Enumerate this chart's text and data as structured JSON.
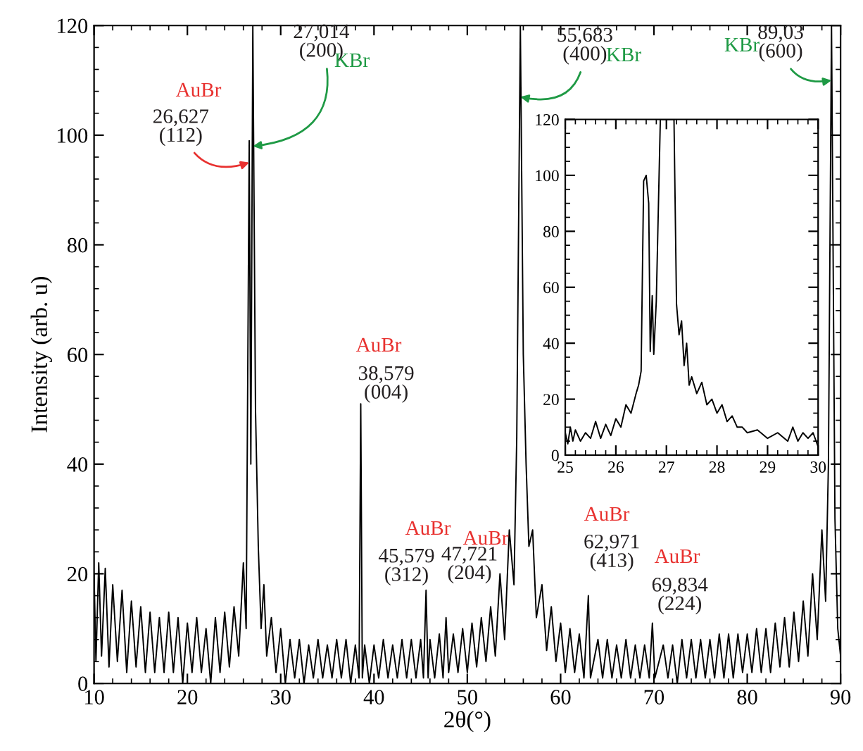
{
  "chart_data": [
    {
      "type": "line",
      "xlabel": "2θ(°)",
      "ylabel": "Intensity (arb. u)",
      "xlim": [
        10,
        90
      ],
      "ylim": [
        0,
        120
      ],
      "xticks": [
        10,
        20,
        30,
        40,
        50,
        60,
        70,
        80,
        90
      ],
      "yticks": [
        0,
        20,
        40,
        60,
        80,
        100,
        120
      ],
      "grid": false,
      "legend": false,
      "series": [
        {
          "color": "#000000",
          "x": [
            10,
            10.2,
            10.5,
            10.8,
            11.2,
            11.6,
            12,
            12.5,
            13,
            13.5,
            14,
            14.5,
            15,
            15.5,
            16,
            16.5,
            17,
            17.5,
            18,
            18.5,
            19,
            19.5,
            20,
            20.5,
            21,
            21.5,
            22,
            22.5,
            23,
            23.5,
            24,
            24.5,
            25,
            25.5,
            26,
            26.3,
            26.627,
            26.8,
            27.014,
            27.3,
            27.6,
            27.9,
            28.2,
            28.5,
            29,
            29.5,
            30,
            30.5,
            31,
            31.5,
            32,
            32.5,
            33,
            33.5,
            34,
            34.5,
            35,
            35.5,
            36,
            36.5,
            37,
            37.5,
            38,
            38.4,
            38.579,
            38.75,
            39,
            39.5,
            40,
            40.5,
            41,
            41.5,
            42,
            42.5,
            43,
            43.5,
            44,
            44.5,
            45,
            45.3,
            45.579,
            45.8,
            46,
            46.5,
            47,
            47.4,
            47.721,
            48,
            48.5,
            49,
            49.5,
            50,
            50.5,
            51,
            51.5,
            52,
            52.5,
            53,
            53.5,
            54,
            54.5,
            55,
            55.3,
            55.683,
            56,
            56.3,
            56.6,
            57,
            57.4,
            58,
            58.5,
            59,
            59.5,
            60,
            60.5,
            61,
            61.5,
            62,
            62.5,
            62.971,
            63.2,
            64,
            64.5,
            65,
            65.5,
            66,
            66.5,
            67,
            67.5,
            68,
            68.5,
            69,
            69.5,
            69.834,
            70.1,
            71,
            71.5,
            72,
            72.5,
            73,
            73.5,
            74,
            74.5,
            75,
            75.5,
            76,
            76.5,
            77,
            77.5,
            78,
            78.5,
            79,
            79.5,
            80,
            80.5,
            81,
            81.5,
            82,
            82.5,
            83,
            83.5,
            84,
            84.5,
            85,
            85.5,
            86,
            86.5,
            87,
            87.5,
            88,
            88.4,
            88.7,
            89.03,
            89.4,
            89.7,
            90
          ],
          "values": [
            20,
            4,
            22,
            5,
            21,
            3,
            18,
            4,
            17,
            2,
            15,
            3,
            14,
            2,
            13,
            2,
            12,
            2,
            13,
            2,
            12,
            0,
            11,
            2,
            12,
            2,
            10,
            0,
            12,
            2,
            13,
            3,
            14,
            5,
            22,
            10,
            99,
            40,
            120,
            50,
            25,
            10,
            18,
            5,
            12,
            2,
            10,
            0,
            8,
            1,
            8,
            0,
            7,
            1,
            8,
            1,
            7,
            1,
            8,
            1,
            8,
            0,
            7,
            1,
            51,
            1,
            7,
            0,
            7,
            1,
            8,
            1,
            7,
            1,
            8,
            1,
            8,
            1,
            8,
            1,
            17,
            1,
            8,
            1,
            9,
            1,
            12,
            2,
            9,
            2,
            10,
            2,
            11,
            3,
            12,
            4,
            14,
            5,
            20,
            8,
            28,
            18,
            45,
            120,
            60,
            40,
            25,
            28,
            12,
            18,
            6,
            14,
            4,
            11,
            2,
            10,
            2,
            9,
            1,
            16,
            1,
            8,
            1,
            8,
            1,
            7,
            1,
            8,
            1,
            7,
            1,
            7,
            1,
            11,
            1,
            7,
            1,
            7,
            0,
            8,
            1,
            8,
            1,
            8,
            1,
            8,
            1,
            9,
            1,
            9,
            1,
            9,
            2,
            9,
            2,
            10,
            2,
            10,
            2,
            11,
            3,
            12,
            3,
            13,
            4,
            15,
            5,
            20,
            8,
            28,
            15,
            40,
            120,
            30,
            10,
            5
          ]
        }
      ],
      "annotations": [
        {
          "text": "26,627\n(112)",
          "x": 26.627,
          "y": 95
        },
        {
          "text": "27,014\n(200)",
          "x": 27.014,
          "y": 98
        },
        {
          "text": "38,579\n(004)",
          "x": 38.579,
          "y": 51
        },
        {
          "text": "45,579\n(312)",
          "x": 45.579,
          "y": 17
        },
        {
          "text": "47,721\n(204)",
          "x": 47.721,
          "y": 12
        },
        {
          "text": "62,971\n(413)",
          "x": 62.971,
          "y": 16
        },
        {
          "text": "69,834\n(224)",
          "x": 69.834,
          "y": 11
        },
        {
          "text": "55,683\n(400)",
          "x": 55.683,
          "y": 107
        },
        {
          "text": "89,03\n(600)",
          "x": 89.03,
          "y": 110
        },
        "AuBr",
        "KBr",
        "AuBr",
        "AuBr",
        "AuBr",
        "AuBr",
        "AuBr",
        "KBr",
        "KBr"
      ]
    },
    {
      "type": "line",
      "xlim": [
        25,
        30
      ],
      "ylim": [
        0,
        120
      ],
      "xticks": [
        25,
        26,
        27,
        28,
        29,
        30
      ],
      "yticks": [
        0,
        20,
        40,
        60,
        80,
        100,
        120
      ],
      "grid": false,
      "legend": false,
      "series": [
        {
          "color": "#000000",
          "x": [
            25,
            25.05,
            25.1,
            25.15,
            25.2,
            25.3,
            25.4,
            25.5,
            25.6,
            25.7,
            25.8,
            25.9,
            26,
            26.1,
            26.2,
            26.3,
            26.4,
            26.45,
            26.5,
            26.55,
            26.6,
            26.65,
            26.68,
            26.72,
            26.75,
            26.8,
            26.88,
            27.15,
            27.2,
            27.25,
            27.3,
            27.35,
            27.4,
            27.45,
            27.5,
            27.6,
            27.7,
            27.8,
            27.9,
            28,
            28.1,
            28.2,
            28.3,
            28.4,
            28.5,
            28.6,
            28.8,
            29,
            29.2,
            29.4,
            29.5,
            29.6,
            29.7,
            29.8,
            29.9,
            30
          ],
          "values": [
            8,
            4,
            10,
            5,
            9,
            5,
            8,
            6,
            12,
            6,
            11,
            7,
            13,
            10,
            18,
            15,
            22,
            25,
            30,
            98,
            100,
            90,
            37,
            57,
            36,
            55,
            120,
            120,
            54,
            43,
            48,
            32,
            40,
            25,
            28,
            22,
            26,
            18,
            20,
            15,
            18,
            12,
            14,
            10,
            10,
            8,
            9,
            6,
            8,
            5,
            10,
            5,
            8,
            6,
            8,
            3
          ]
        }
      ]
    }
  ]
}
